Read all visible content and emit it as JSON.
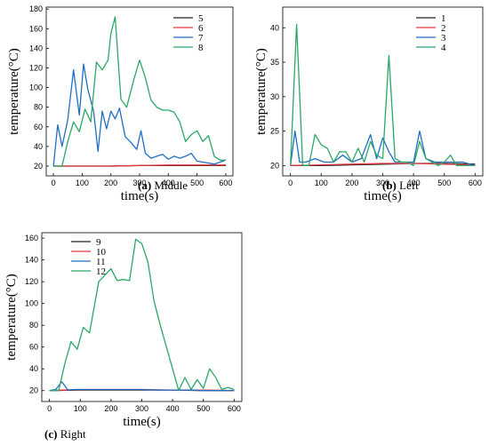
{
  "chart_data": [
    {
      "type": "line",
      "caption_letter": "(a)",
      "caption_text": " Middle",
      "xlabel": "time(s)",
      "ylabel": "temperature(°C)",
      "xlim": [
        -25,
        625
      ],
      "ylim": [
        10,
        182
      ],
      "xticks": [
        0,
        100,
        200,
        300,
        400,
        500,
        600
      ],
      "yticks": [
        20,
        40,
        60,
        80,
        100,
        120,
        140,
        160,
        180
      ],
      "legend_position": "top-right",
      "series": [
        {
          "name": "5",
          "color": "#222222",
          "x": [
            0,
            100,
            200,
            300,
            400,
            500,
            600
          ],
          "y": [
            20,
            20,
            20,
            20.5,
            20.5,
            20.5,
            20.5
          ]
        },
        {
          "name": "6",
          "color": "#e8383d",
          "x": [
            0,
            100,
            200,
            300,
            400,
            500,
            600
          ],
          "y": [
            20,
            20,
            20,
            20.5,
            21,
            21,
            21
          ]
        },
        {
          "name": "7",
          "color": "#1f6fc5",
          "x": [
            0,
            15,
            30,
            50,
            70,
            90,
            105,
            120,
            140,
            155,
            170,
            185,
            200,
            215,
            230,
            250,
            270,
            290,
            305,
            320,
            340,
            360,
            380,
            400,
            420,
            440,
            460,
            480,
            500,
            520,
            540,
            560,
            580,
            600
          ],
          "y": [
            20,
            62,
            40,
            67,
            118,
            72,
            124,
            98,
            76,
            35,
            76,
            58,
            76,
            68,
            79,
            50,
            44,
            37,
            56,
            33,
            28,
            30,
            32,
            27,
            30,
            28,
            30,
            33,
            25,
            24,
            23,
            22,
            24,
            26
          ]
        },
        {
          "name": "8",
          "color": "#2aa867",
          "x": [
            0,
            30,
            50,
            70,
            90,
            110,
            130,
            150,
            170,
            190,
            200,
            215,
            235,
            255,
            280,
            300,
            320,
            340,
            360,
            380,
            400,
            420,
            440,
            460,
            480,
            500,
            520,
            540,
            560,
            580,
            600
          ],
          "y": [
            20,
            20,
            45,
            65,
            55,
            78,
            65,
            126,
            118,
            128,
            155,
            172,
            88,
            80,
            108,
            128,
            110,
            87,
            80,
            77,
            77,
            75,
            65,
            45,
            52,
            56,
            45,
            51,
            30,
            26,
            26
          ]
        }
      ]
    },
    {
      "type": "line",
      "caption_letter": "(b)",
      "caption_text": " Left",
      "xlabel": "time(s)",
      "ylabel": "temperature(°C)",
      "xlim": [
        -25,
        625
      ],
      "ylim": [
        18.5,
        43
      ],
      "xticks": [
        0,
        100,
        200,
        300,
        400,
        500,
        600
      ],
      "yticks": [
        20,
        25,
        30,
        35,
        40
      ],
      "legend_position": "top-right",
      "series": [
        {
          "name": "1",
          "color": "#222222",
          "x": [
            0,
            100,
            200,
            300,
            400,
            500,
            600
          ],
          "y": [
            20,
            20,
            20.1,
            20.2,
            20.3,
            20.3,
            20.2
          ]
        },
        {
          "name": "2",
          "color": "#e8383d",
          "x": [
            0,
            100,
            200,
            300,
            400,
            500,
            600
          ],
          "y": [
            20,
            20.1,
            20.2,
            20.3,
            20.3,
            20.2,
            20.1
          ]
        },
        {
          "name": "3",
          "color": "#1f6fc5",
          "x": [
            0,
            15,
            30,
            50,
            80,
            110,
            140,
            170,
            200,
            230,
            260,
            280,
            300,
            320,
            340,
            370,
            400,
            420,
            440,
            470,
            500,
            530,
            560,
            600
          ],
          "y": [
            20,
            25,
            20.5,
            20.5,
            21,
            20.5,
            20.5,
            21.5,
            20.5,
            21,
            24.5,
            21,
            24,
            22,
            20.5,
            20.5,
            20.5,
            25,
            21,
            20.5,
            20.5,
            20.5,
            20.5,
            20
          ]
        },
        {
          "name": "4",
          "color": "#2aa867",
          "x": [
            0,
            20,
            40,
            60,
            80,
            100,
            120,
            140,
            160,
            180,
            200,
            220,
            240,
            260,
            280,
            300,
            320,
            340,
            360,
            380,
            400,
            420,
            440,
            460,
            480,
            500,
            520,
            540,
            560,
            580,
            600
          ],
          "y": [
            20,
            40.5,
            20,
            20,
            24.5,
            23,
            22.5,
            20.5,
            22,
            22,
            20.5,
            22.5,
            20.5,
            23.5,
            21.5,
            21,
            36,
            21,
            20.5,
            20.5,
            20,
            23.5,
            21,
            20.5,
            20,
            20.5,
            21.5,
            20,
            20,
            20,
            20
          ]
        }
      ]
    },
    {
      "type": "line",
      "caption_letter": "(c)",
      "caption_text": " Right",
      "xlabel": "time(s)",
      "ylabel": "temperature(°C)",
      "xlim": [
        -25,
        625
      ],
      "ylim": [
        10,
        165
      ],
      "xticks": [
        0,
        100,
        200,
        300,
        400,
        500,
        600
      ],
      "yticks": [
        20,
        40,
        60,
        80,
        100,
        120,
        140,
        160
      ],
      "legend_position": "top-right",
      "series": [
        {
          "name": "9",
          "color": "#222222",
          "x": [
            0,
            100,
            200,
            300,
            400,
            500,
            600
          ],
          "y": [
            20,
            20.5,
            20.5,
            20.5,
            20.5,
            20,
            20
          ]
        },
        {
          "name": "10",
          "color": "#e8383d",
          "x": [
            0,
            100,
            200,
            300,
            400,
            500,
            600
          ],
          "y": [
            20,
            21,
            21,
            21,
            20.5,
            20.5,
            20
          ]
        },
        {
          "name": "11",
          "color": "#1f6fc5",
          "x": [
            0,
            20,
            40,
            60,
            80,
            100,
            150,
            200,
            250,
            300,
            350,
            400,
            450,
            500,
            550,
            600
          ],
          "y": [
            20,
            21,
            28,
            20.5,
            21,
            21,
            21,
            21,
            21,
            21,
            20.5,
            20.5,
            20.5,
            20,
            20,
            20
          ]
        },
        {
          "name": "12",
          "color": "#2aa867",
          "x": [
            0,
            30,
            50,
            70,
            90,
            110,
            130,
            160,
            180,
            200,
            220,
            240,
            260,
            280,
            300,
            320,
            340,
            360,
            380,
            400,
            420,
            440,
            460,
            480,
            500,
            520,
            540,
            560,
            580,
            600
          ],
          "y": [
            20,
            20,
            45,
            65,
            58,
            78,
            73,
            120,
            126,
            132,
            121,
            122,
            121,
            159,
            155,
            138,
            102,
            80,
            60,
            40,
            20,
            32,
            21,
            30,
            22,
            40,
            32,
            21,
            23,
            21
          ]
        }
      ]
    }
  ]
}
